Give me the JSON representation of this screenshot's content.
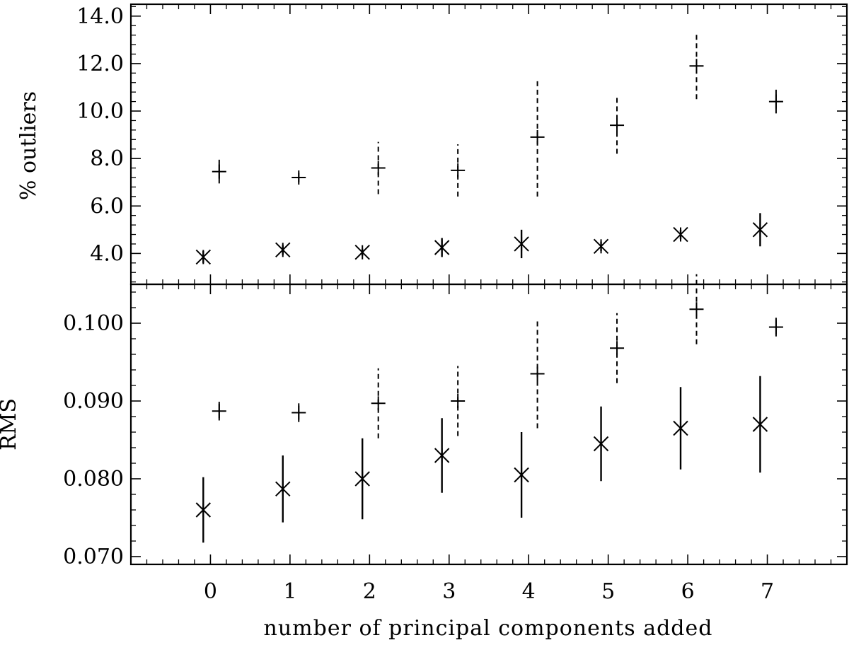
{
  "chart_data": [
    {
      "type": "scatter",
      "panel": "top",
      "xlabel": "",
      "ylabel": "% outliers",
      "xlim": [
        -1,
        8
      ],
      "ylim": [
        2.7,
        14.5
      ],
      "yticks": [
        4.0,
        6.0,
        8.0,
        10.0,
        12.0,
        14.0
      ],
      "ytick_labels": [
        "4.0",
        "6.0",
        "8.0",
        "10.0",
        "12.0",
        "14.0"
      ],
      "series": [
        {
          "marker": "asterisk",
          "x": [
            0,
            1,
            2,
            3,
            4,
            5,
            6,
            7
          ],
          "y": [
            3.85,
            4.15,
            4.05,
            4.25,
            4.4,
            4.3,
            4.8,
            5.0
          ],
          "err": [
            0.25,
            0.2,
            0.15,
            0.4,
            0.6,
            0.2,
            0.2,
            0.7
          ],
          "errbar_style": "solid"
        },
        {
          "marker": "plus",
          "x": [
            0,
            1,
            2,
            3,
            4,
            5,
            6,
            7
          ],
          "y": [
            7.45,
            7.2,
            7.6,
            7.5,
            8.9,
            9.4,
            11.9,
            10.4
          ],
          "err": [
            0.5,
            0.2,
            1.1,
            1.1,
            2.5,
            1.2,
            1.4,
            0.5
          ],
          "errbar_style": [
            "solid",
            "solid",
            "dashed",
            "dashed",
            "dashed",
            "dashed",
            "dashed",
            "solid"
          ]
        }
      ]
    },
    {
      "type": "scatter",
      "panel": "bottom",
      "xlabel": "number of principal components added",
      "ylabel": "RMS",
      "xlim": [
        -1,
        8
      ],
      "ylim": [
        0.069,
        0.105
      ],
      "xticks": [
        0,
        1,
        2,
        3,
        4,
        5,
        6,
        7
      ],
      "xtick_labels": [
        "0",
        "1",
        "2",
        "3",
        "4",
        "5",
        "6",
        "7"
      ],
      "yticks": [
        0.07,
        0.08,
        0.09,
        0.1
      ],
      "ytick_labels": [
        "0.070",
        "0.080",
        "0.090",
        "0.100"
      ],
      "series": [
        {
          "marker": "asterisk",
          "x": [
            0,
            1,
            2,
            3,
            4,
            5,
            6,
            7
          ],
          "y": [
            0.076,
            0.0787,
            0.08,
            0.083,
            0.0805,
            0.0845,
            0.0865,
            0.087
          ],
          "err": [
            0.0042,
            0.0043,
            0.0052,
            0.0048,
            0.0055,
            0.0048,
            0.0053,
            0.0062
          ],
          "errbar_style": "solid"
        },
        {
          "marker": "plus",
          "x": [
            0,
            1,
            2,
            3,
            4,
            5,
            6,
            7
          ],
          "y": [
            0.0887,
            0.0885,
            0.0897,
            0.09,
            0.0935,
            0.0968,
            0.1018,
            0.0995
          ],
          "err": [
            0.0012,
            0.0012,
            0.0045,
            0.0045,
            0.007,
            0.0045,
            0.0045,
            0.0012
          ],
          "errbar_style": [
            "solid",
            "solid",
            "dashed",
            "dashed",
            "dashed",
            "dashed",
            "dashed",
            "solid"
          ]
        }
      ]
    }
  ]
}
